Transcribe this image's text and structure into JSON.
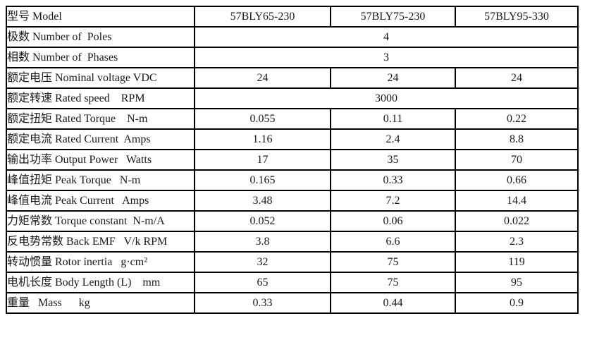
{
  "table": {
    "title_semantic": "BLDC motor specifications",
    "columns": {
      "label_col": "型号 Model",
      "models": [
        "57BLY65-230",
        "57BLY75-230",
        "57BLY95-330"
      ]
    },
    "rows": [
      {
        "label": "型号 Model",
        "values": [
          "57BLY65-230",
          "57BLY75-230",
          "57BLY95-330"
        ]
      },
      {
        "label": "极数 Number of  Poles",
        "values": [
          "4"
        ]
      },
      {
        "label": "相数 Number of  Phases",
        "values": [
          "3"
        ]
      },
      {
        "label": "额定电压 Nominal voltage VDC",
        "values": [
          "24",
          "24",
          "24"
        ]
      },
      {
        "label": "额定转速 Rated speed    RPM",
        "values": [
          "3000"
        ]
      },
      {
        "label": "额定扭矩 Rated Torque    N-m",
        "values": [
          "0.055",
          "0.11",
          "0.22"
        ]
      },
      {
        "label": "额定电流 Rated Current  Amps",
        "values": [
          "1.16",
          "2.4",
          "8.8"
        ]
      },
      {
        "label": "输出功率 Output Power   Watts",
        "values": [
          "17",
          "35",
          "70"
        ]
      },
      {
        "label": "峰值扭矩 Peak Torque   N-m",
        "values": [
          "0.165",
          "0.33",
          "0.66"
        ]
      },
      {
        "label": "峰值电流 Peak Current   Amps",
        "values": [
          "3.48",
          "7.2",
          "14.4"
        ]
      },
      {
        "label": "力矩常数 Torque constant  N-m/A",
        "values": [
          "0.052",
          "0.06",
          "0.022"
        ]
      },
      {
        "label": "反电势常数 Back EMF   V/k RPM",
        "values": [
          "3.8",
          "6.6",
          "2.3"
        ]
      },
      {
        "label": "转动惯量 Rotor inertia   g·cm²",
        "values": [
          "32",
          "75",
          "119"
        ]
      },
      {
        "label": "电机长度 Body Length (L)    mm",
        "values": [
          "65",
          "75",
          "95"
        ]
      },
      {
        "label": "重量   Mass      kg",
        "values": [
          "0.33",
          "0.44",
          "0.9"
        ]
      }
    ],
    "colors": {
      "border": "#000000",
      "text": "#1a1a1a",
      "background": "#ffffff"
    }
  }
}
